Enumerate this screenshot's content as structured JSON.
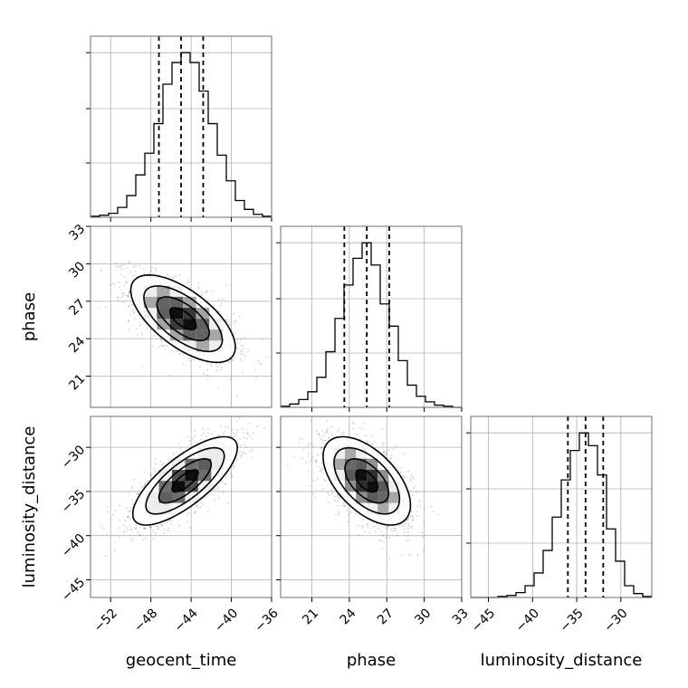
{
  "chart_data": {
    "type": "corner",
    "parameters": [
      "geocent_time",
      "phase",
      "luminosity_distance"
    ],
    "axes": {
      "geocent_time": {
        "range": [
          -54,
          -36
        ],
        "ticks": [
          -52,
          -48,
          -44,
          -40,
          -36
        ],
        "tick_labels": [
          "−52",
          "−48",
          "−44",
          "−40",
          "−36"
        ]
      },
      "phase": {
        "range": [
          18.5,
          33
        ],
        "ticks": [
          21,
          24,
          27,
          30,
          33
        ],
        "tick_labels": [
          "21",
          "24",
          "27",
          "30",
          "33"
        ]
      },
      "luminosity_distance": {
        "range": [
          -47,
          -26.5
        ],
        "ticks": [
          -45,
          -40,
          -35,
          -30
        ],
        "tick_labels": [
          "−45",
          "−40",
          "−35",
          "−30"
        ]
      }
    },
    "histograms": [
      {
        "parameter": "geocent_time",
        "bin_edges": [
          -54,
          -53.1,
          -52.2,
          -51.3,
          -50.4,
          -49.5,
          -48.6,
          -47.7,
          -46.8,
          -45.9,
          -45,
          -44.1,
          -43.2,
          -42.3,
          -41.4,
          -40.5,
          -39.6,
          -38.7,
          -37.8,
          -36.9,
          -36
        ],
        "counts": [
          1,
          2,
          4,
          10,
          22,
          43,
          65,
          95,
          135,
          157,
          167,
          157,
          128,
          95,
          63,
          37,
          17,
          8,
          3,
          1
        ],
        "quantiles": [
          -47.2,
          -45.0,
          -42.8
        ]
      },
      {
        "parameter": "phase",
        "bin_edges": [
          18.5,
          19.225,
          19.95,
          20.675,
          21.4,
          22.125,
          22.85,
          23.575,
          24.3,
          25.025,
          25.75,
          26.475,
          27.2,
          27.925,
          28.65,
          29.375,
          30.1,
          30.825,
          31.55,
          32.275,
          33
        ],
        "counts": [
          1,
          3,
          7,
          14,
          27,
          50,
          80,
          110,
          134,
          148,
          128,
          93,
          73,
          42,
          20,
          10,
          5,
          2,
          1,
          0
        ],
        "quantiles": [
          23.6,
          25.4,
          27.2
        ]
      },
      {
        "parameter": "luminosity_distance",
        "bin_edges": [
          -47,
          -45.975,
          -44.95,
          -43.925,
          -42.9,
          -41.875,
          -40.85,
          -39.825,
          -38.8,
          -37.775,
          -36.75,
          -35.725,
          -34.7,
          -33.675,
          -32.65,
          -31.625,
          -30.6,
          -29.575,
          -28.55,
          -27.525,
          -26.5
        ],
        "counts": [
          0,
          0,
          0,
          1,
          2,
          5,
          12,
          25,
          48,
          82,
          120,
          150,
          168,
          155,
          125,
          70,
          37,
          12,
          4,
          1
        ],
        "quantiles": [
          -36.0,
          -34.0,
          -32.0
        ]
      }
    ],
    "joint_2d": [
      {
        "x": "geocent_time",
        "y": "phase",
        "mean": [
          -44.8,
          25.6
        ],
        "sd": [
          2.6,
          1.75
        ],
        "correlation": -0.65
      },
      {
        "x": "geocent_time",
        "y": "luminosity_distance",
        "mean": [
          -44.6,
          -33.8
        ],
        "sd": [
          2.6,
          2.5
        ],
        "correlation": 0.75
      },
      {
        "x": "phase",
        "y": "luminosity_distance",
        "mean": [
          25.4,
          -33.8
        ],
        "sd": [
          1.75,
          2.5
        ],
        "correlation": -0.55
      }
    ],
    "contour_levels": [
      0.5,
      1.0,
      1.5,
      2.0
    ],
    "grid": true
  }
}
